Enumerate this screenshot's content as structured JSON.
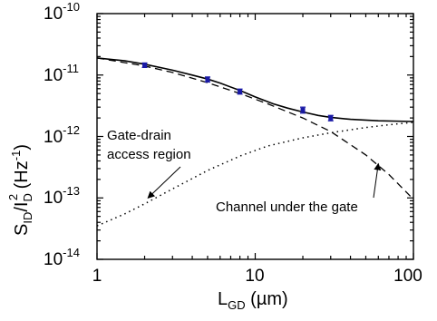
{
  "chart_data": {
    "type": "line",
    "xscale": "log",
    "yscale": "log",
    "xlim": [
      1,
      100
    ],
    "ylim": [
      1e-14,
      1e-10
    ],
    "grid": false,
    "xlabel": {
      "main": "L",
      "sub": "GD",
      "rest": " (µm)"
    },
    "ylabel": {
      "p1": "S",
      "sub1": "ID",
      "p2": "/I",
      "sub2": "D",
      "sup2": "2",
      "p3": " (Hz",
      "sup3": "-1",
      "p4": ")"
    },
    "x_ticks": [
      {
        "value": 1,
        "label": "1"
      },
      {
        "value": 10,
        "label": "10"
      },
      {
        "value": 100,
        "label": "100"
      }
    ],
    "y_ticks": [
      {
        "value": 1e-14,
        "base": "10",
        "exp": "-14"
      },
      {
        "value": 1e-13,
        "base": "10",
        "exp": "-13"
      },
      {
        "value": 1e-12,
        "base": "10",
        "exp": "-12"
      },
      {
        "value": 1e-11,
        "base": "10",
        "exp": "-11"
      },
      {
        "value": 1e-10,
        "base": "10",
        "exp": "-10"
      }
    ],
    "measured": {
      "color": "#1a1aa6",
      "points": [
        {
          "x": 2,
          "y": 1.45e-11,
          "err": 1.2e-12
        },
        {
          "x": 5,
          "y": 8.5e-12,
          "err": 8e-13
        },
        {
          "x": 8,
          "y": 5.4e-12,
          "err": 5e-13
        },
        {
          "x": 20,
          "y": 2.7e-12,
          "err": 3e-13
        },
        {
          "x": 30,
          "y": 2e-12,
          "err": 2e-13
        }
      ]
    },
    "total_fit": {
      "style": "solid",
      "points": [
        {
          "x": 1,
          "y": 1.9e-11
        },
        {
          "x": 1.5,
          "y": 1.7e-11
        },
        {
          "x": 2,
          "y": 1.5e-11
        },
        {
          "x": 3,
          "y": 1.2e-11
        },
        {
          "x": 4,
          "y": 1e-11
        },
        {
          "x": 5,
          "y": 8.6e-12
        },
        {
          "x": 6,
          "y": 7.4e-12
        },
        {
          "x": 8,
          "y": 5.6e-12
        },
        {
          "x": 10,
          "y": 4.4e-12
        },
        {
          "x": 13,
          "y": 3.4e-12
        },
        {
          "x": 16,
          "y": 2.9e-12
        },
        {
          "x": 20,
          "y": 2.5e-12
        },
        {
          "x": 25,
          "y": 2.2e-12
        },
        {
          "x": 30,
          "y": 2.05e-12
        },
        {
          "x": 40,
          "y": 1.9e-12
        },
        {
          "x": 60,
          "y": 1.8e-12
        },
        {
          "x": 100,
          "y": 1.75e-12
        }
      ]
    },
    "channel_component": {
      "style": "dashed",
      "points": [
        {
          "x": 1,
          "y": 1.9e-11
        },
        {
          "x": 2,
          "y": 1.4e-11
        },
        {
          "x": 3,
          "y": 1.1e-11
        },
        {
          "x": 5,
          "y": 7.5e-12
        },
        {
          "x": 8,
          "y": 5e-12
        },
        {
          "x": 12,
          "y": 3.4e-12
        },
        {
          "x": 20,
          "y": 2e-12
        },
        {
          "x": 30,
          "y": 1.2e-12
        },
        {
          "x": 50,
          "y": 5e-13
        },
        {
          "x": 70,
          "y": 2.4e-13
        },
        {
          "x": 100,
          "y": 9.5e-14
        }
      ]
    },
    "access_component": {
      "style": "dotted",
      "points": [
        {
          "x": 1,
          "y": 3.5e-14
        },
        {
          "x": 1.5,
          "y": 5.5e-14
        },
        {
          "x": 2,
          "y": 8e-14
        },
        {
          "x": 3,
          "y": 1.4e-13
        },
        {
          "x": 5,
          "y": 2.8e-13
        },
        {
          "x": 8,
          "y": 4.8e-13
        },
        {
          "x": 12,
          "y": 7e-13
        },
        {
          "x": 20,
          "y": 9.5e-13
        },
        {
          "x": 30,
          "y": 1.15e-12
        },
        {
          "x": 50,
          "y": 1.4e-12
        },
        {
          "x": 70,
          "y": 1.55e-12
        },
        {
          "x": 100,
          "y": 1.7e-12
        }
      ]
    },
    "annotations": [
      {
        "id": "access",
        "lines": [
          "Gate-drain",
          "access region"
        ],
        "arrow_to": {
          "x": 2.1,
          "y": 1e-13
        }
      },
      {
        "id": "channel",
        "lines": [
          "Channel under the gate"
        ],
        "arrow_to": {
          "x": 60,
          "y": 3.6e-13
        }
      }
    ]
  }
}
